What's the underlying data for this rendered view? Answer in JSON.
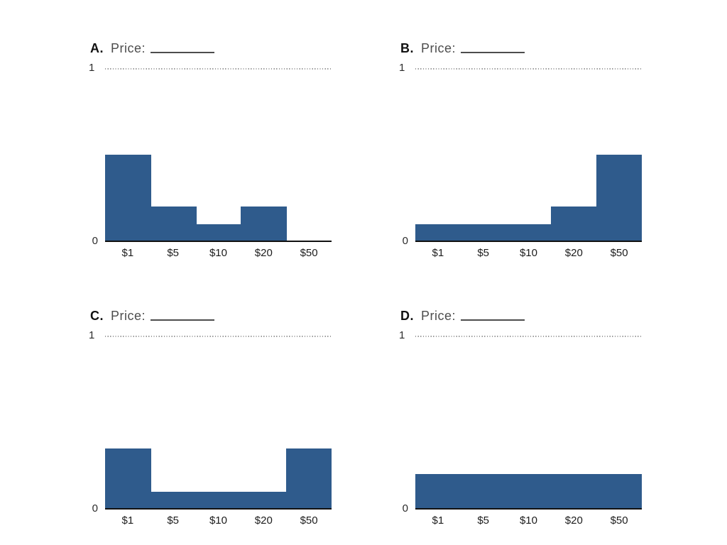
{
  "styles": {
    "background": "#ffffff",
    "bar_color": "#2f5b8c",
    "axis_color": "#111111",
    "grid_dot_color": "#9b9b9b"
  },
  "chart_data": [
    {
      "type": "bar",
      "panel_label": "A.",
      "price_label": "Price:",
      "price_value": "",
      "categories": [
        "$1",
        "$5",
        "$10",
        "$20",
        "$50"
      ],
      "values": [
        0.5,
        0.2,
        0.1,
        0.2,
        0
      ],
      "xlabel": "",
      "ylabel": "",
      "ylim": [
        0,
        1
      ],
      "y_min_label": "0",
      "y_max_label": "1",
      "gridline_at_y1": true,
      "legend": "none"
    },
    {
      "type": "bar",
      "panel_label": "B.",
      "price_label": "Price:",
      "price_value": "",
      "categories": [
        "$1",
        "$5",
        "$10",
        "$20",
        "$50"
      ],
      "values": [
        0.1,
        0.1,
        0.1,
        0.2,
        0.5
      ],
      "xlabel": "",
      "ylabel": "",
      "ylim": [
        0,
        1
      ],
      "y_min_label": "0",
      "y_max_label": "1",
      "gridline_at_y1": true,
      "legend": "none"
    },
    {
      "type": "bar",
      "panel_label": "C.",
      "price_label": "Price:",
      "price_value": "",
      "categories": [
        "$1",
        "$5",
        "$10",
        "$20",
        "$50"
      ],
      "values": [
        0.35,
        0.1,
        0.1,
        0.1,
        0.35
      ],
      "xlabel": "",
      "ylabel": "",
      "ylim": [
        0,
        1
      ],
      "y_min_label": "0",
      "y_max_label": "1",
      "gridline_at_y1": true,
      "legend": "none"
    },
    {
      "type": "bar",
      "panel_label": "D.",
      "price_label": "Price:",
      "price_value": "",
      "categories": [
        "$1",
        "$5",
        "$10",
        "$20",
        "$50"
      ],
      "values": [
        0.2,
        0.2,
        0.2,
        0.2,
        0.2
      ],
      "xlabel": "",
      "ylabel": "",
      "ylim": [
        0,
        1
      ],
      "y_min_label": "0",
      "y_max_label": "1",
      "gridline_at_y1": true,
      "legend": "none"
    }
  ]
}
